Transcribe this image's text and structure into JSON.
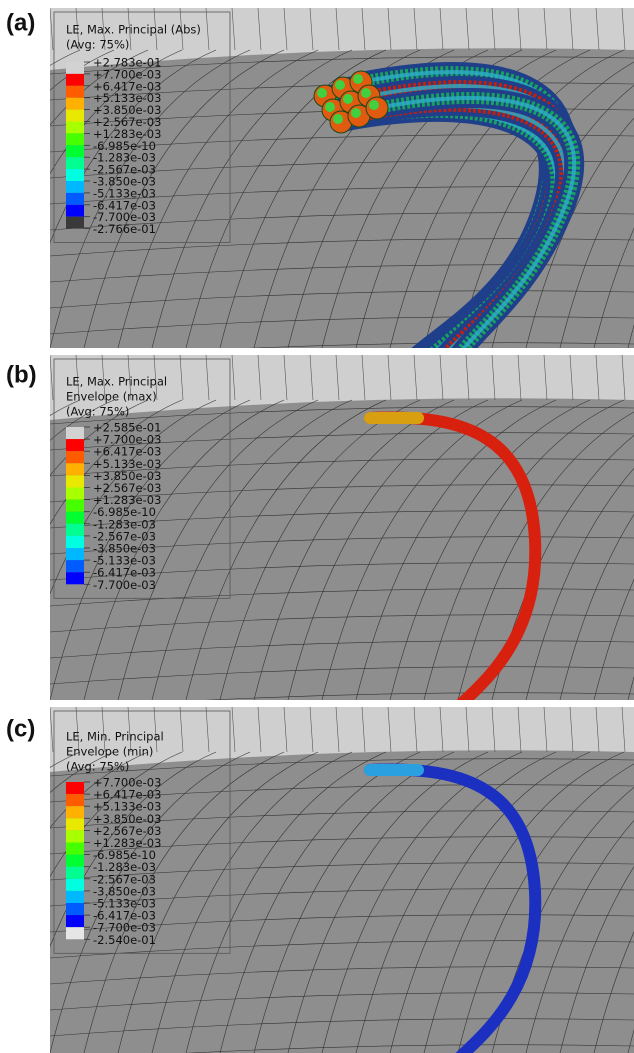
{
  "panels": [
    {
      "label": "(a)",
      "legend": {
        "title": [
          "LE, Max. Principal (Abs)",
          "(Avg: 75%)"
        ],
        "labels": [
          "+2.783e-01",
          "+7.700e-03",
          "+6.417e-03",
          "+5.133e-03",
          "+3.850e-03",
          "+2.567e-03",
          "+1.283e-03",
          "-6.985e-10",
          "-1.283e-03",
          "-2.567e-03",
          "-3.850e-03",
          "-5.133e-03",
          "-6.417e-03",
          "-7.700e-03",
          "-2.766e-01"
        ],
        "colors": [
          "#d2d2d2",
          "#ff0000",
          "#ff5c00",
          "#ffb000",
          "#e8e800",
          "#a8ff00",
          "#46ff00",
          "#00ff30",
          "#00ff90",
          "#00ffe0",
          "#00b8ff",
          "#005cff",
          "#0000ff",
          "#3a3a3a"
        ]
      }
    },
    {
      "label": "(b)",
      "legend": {
        "title": [
          "LE, Max. Principal",
          "Envelope (max)",
          "(Avg: 75%)"
        ],
        "labels": [
          "+2.585e-01",
          "+7.700e-03",
          "+6.417e-03",
          "+5.133e-03",
          "+3.850e-03",
          "+2.567e-03",
          "+1.283e-03",
          "-6.985e-10",
          "-1.283e-03",
          "-2.567e-03",
          "-3.850e-03",
          "-5.133e-03",
          "-6.417e-03",
          "-7.700e-03"
        ],
        "colors": [
          "#d2d2d2",
          "#ff0000",
          "#ff5c00",
          "#ffb000",
          "#e8e800",
          "#a8ff00",
          "#46ff00",
          "#00ff30",
          "#00ff90",
          "#00ffe0",
          "#00b8ff",
          "#005cff",
          "#0000ff"
        ]
      }
    },
    {
      "label": "(c)",
      "legend": {
        "title": [
          "LE, Min. Principal",
          "Envelope (min)",
          "(Avg: 75%)"
        ],
        "labels": [
          "+7.700e-03",
          "+6.417e-03",
          "+5.133e-03",
          "+3.850e-03",
          "+2.567e-03",
          "+1.283e-03",
          "-6.985e-10",
          "-1.283e-03",
          "-2.567e-03",
          "-3.850e-03",
          "-5.133e-03",
          "-6.417e-03",
          "-7.700e-03",
          "-2.540e-01"
        ],
        "colors": [
          "#ff0000",
          "#ff5c00",
          "#ffb000",
          "#e8e800",
          "#a8ff00",
          "#46ff00",
          "#00ff30",
          "#00ff90",
          "#00ffe0",
          "#00b8ff",
          "#005cff",
          "#0000ff",
          "#e6e6e6"
        ]
      }
    }
  ]
}
